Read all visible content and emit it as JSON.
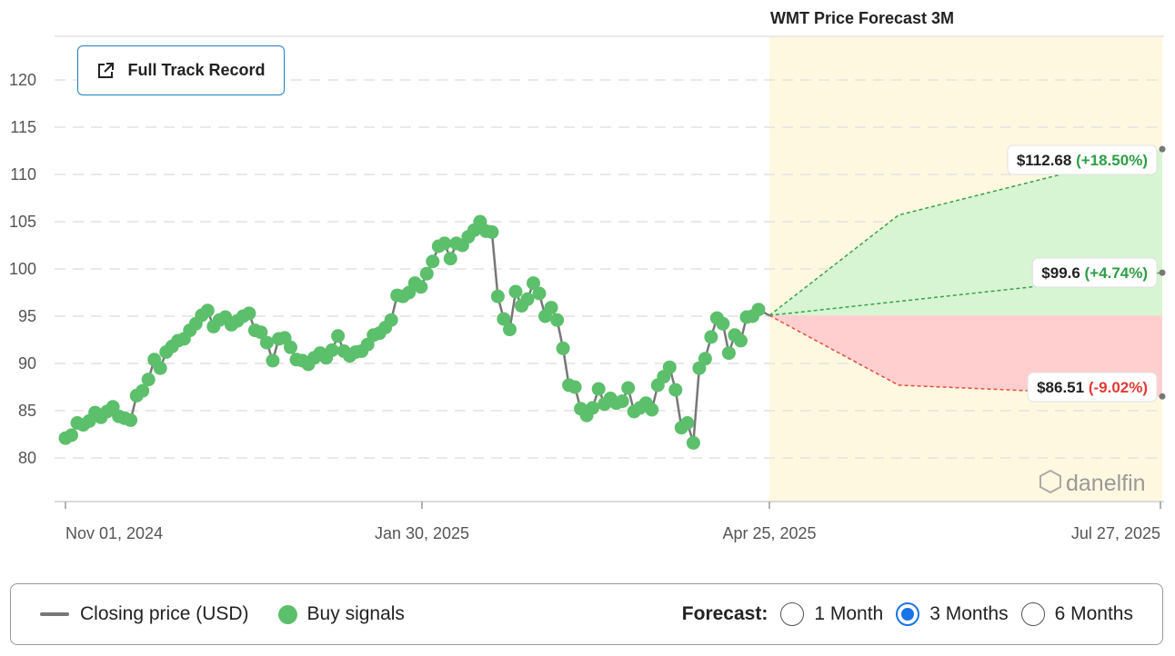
{
  "chart_data": {
    "type": "line",
    "title": "WMT Price Forecast 3M",
    "ylim": [
      75,
      124
    ],
    "y_ticks": [
      80,
      85,
      90,
      95,
      100,
      105,
      110,
      115,
      120
    ],
    "x_tick_labels": [
      "Nov 01, 2024",
      "Jan 30, 2025",
      "Apr 25, 2025",
      "Jul 27, 2025"
    ],
    "grid": true,
    "series": [
      {
        "name": "Closing price (USD)",
        "color": "#777777",
        "values": [
          82.1,
          82.4,
          83.7,
          83.5,
          83.9,
          84.8,
          84.3,
          84.9,
          85.4,
          84.4,
          84.2,
          84.0,
          86.6,
          87.1,
          88.3,
          90.4,
          89.5,
          91.2,
          91.8,
          92.4,
          92.6,
          93.5,
          94.2,
          95.1,
          95.6,
          93.9,
          94.6,
          94.9,
          94.1,
          94.5,
          95.0,
          95.3,
          93.5,
          93.3,
          92.2,
          90.3,
          92.6,
          92.7,
          91.7,
          90.4,
          90.3,
          89.9,
          90.6,
          91.1,
          90.6,
          91.4,
          92.9,
          91.3,
          90.8,
          91.2,
          91.3,
          92.0,
          93.0,
          93.2,
          93.8,
          94.6,
          97.2,
          97.1,
          97.5,
          98.5,
          98.1,
          99.5,
          100.8,
          102.4,
          102.7,
          101.1,
          102.7,
          102.5,
          103.4,
          104.1,
          105.0,
          104.0,
          103.9,
          97.1,
          94.7,
          93.6,
          97.6,
          96.1,
          96.8,
          98.5,
          97.4,
          95.0,
          95.9,
          94.6,
          91.6,
          87.7,
          87.5,
          85.2,
          84.5,
          85.3,
          87.3,
          85.7,
          86.3,
          85.8,
          86.0,
          87.4,
          84.9,
          85.3,
          85.8,
          85.1,
          87.7,
          88.6,
          89.6,
          87.2,
          83.2,
          83.7,
          81.6,
          89.5,
          90.5,
          92.8,
          94.8,
          94.2,
          91.1,
          93.0,
          92.4,
          94.9,
          95.0,
          95.7
        ],
        "buy_signals": "all closing points"
      }
    ],
    "forecast": {
      "start_value": 95.08,
      "upper": {
        "label": "$112.68",
        "change": "(+18.50%)",
        "value": 112.68,
        "mid_value": 105.7
      },
      "median": {
        "label": "$99.6",
        "change": "(+4.74%)",
        "value": 99.6,
        "mid_value": 97.4
      },
      "lower": {
        "label": "$86.51",
        "change": "(-9.02%)",
        "value": 86.51,
        "mid_value": 87.7
      },
      "colors": {
        "up": "#5cbf6b",
        "down": "#e74c3c",
        "zone": "#fff8e0",
        "up_fill": "#d7f5d2",
        "down_fill": "#ffcfcf"
      }
    },
    "brand": "danelfin"
  },
  "ui": {
    "track_button": "Full Track Record",
    "legend": {
      "closing": "Closing price (USD)",
      "buy": "Buy signals",
      "forecast_label": "Forecast:",
      "options": [
        "1 Month",
        "3 Months",
        "6 Months"
      ],
      "selected": "3 Months"
    }
  }
}
